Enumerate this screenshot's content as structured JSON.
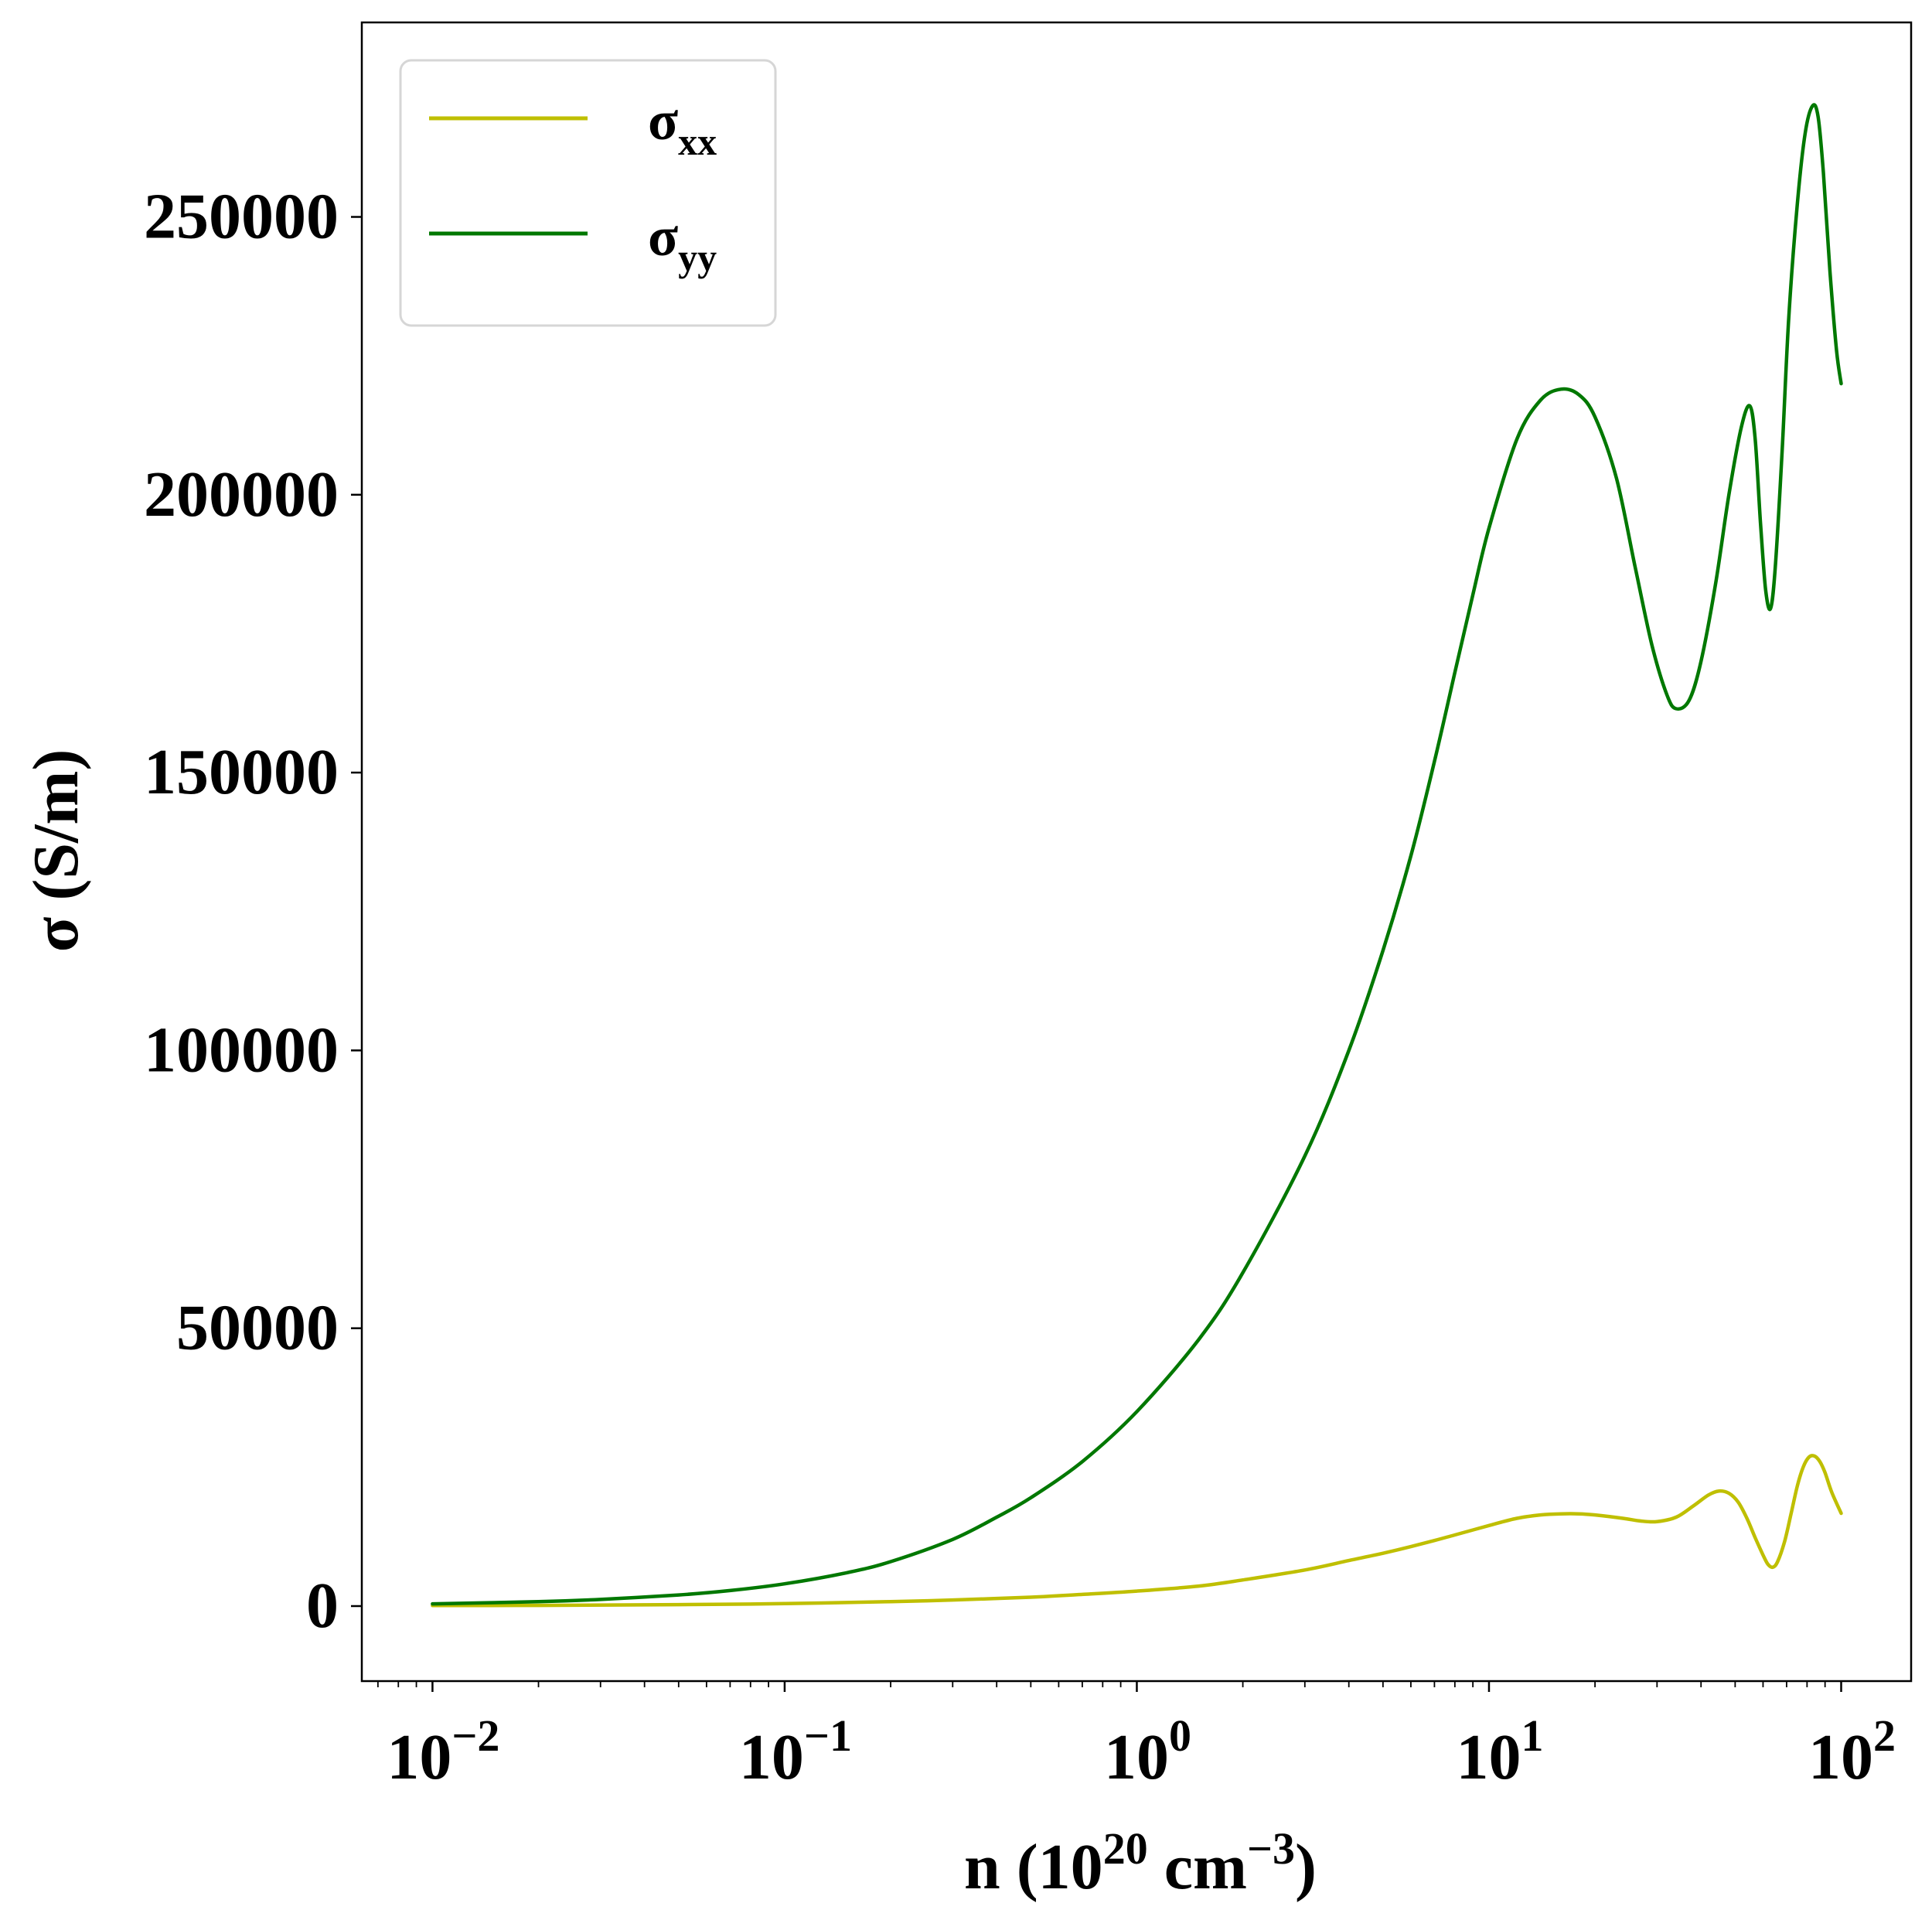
{
  "chart_data": {
    "type": "line",
    "xscale": "log",
    "xlim": [
      0.0063,
      158
    ],
    "ylim": [
      -13500,
      285000
    ],
    "xlabel": {
      "base": "n (10",
      "sup1": "20",
      "mid": " cm",
      "sup2": "−3",
      "end": ")"
    },
    "ylabel": "σ (S/m)",
    "x_ticks": [
      {
        "base": "10",
        "exp": "−2"
      },
      {
        "base": "10",
        "exp": "−1"
      },
      {
        "base": "10",
        "exp": "0"
      },
      {
        "base": "10",
        "exp": "1"
      },
      {
        "base": "10",
        "exp": "2"
      }
    ],
    "y_ticks": [
      "0",
      "50000",
      "100000",
      "150000",
      "200000",
      "250000"
    ],
    "legend": {
      "position": "top-left"
    },
    "series": [
      {
        "name": "σxx",
        "label_main": "σ",
        "label_sub": "xx",
        "color": "#bfbf00",
        "points": [
          [
            0.01,
            100
          ],
          [
            0.02,
            130
          ],
          [
            0.05,
            260
          ],
          [
            0.1,
            450
          ],
          [
            0.2,
            800
          ],
          [
            0.3,
            1100
          ],
          [
            0.5,
            1600
          ],
          [
            0.7,
            2100
          ],
          [
            1.0,
            2700
          ],
          [
            1.5,
            3600
          ],
          [
            2,
            4700
          ],
          [
            3,
            6500
          ],
          [
            4,
            8200
          ],
          [
            5,
            9500
          ],
          [
            6,
            10700
          ],
          [
            7,
            11800
          ],
          [
            8,
            12800
          ],
          [
            10,
            14500
          ],
          [
            12,
            15800
          ],
          [
            14,
            16400
          ],
          [
            16,
            16600
          ],
          [
            18,
            16600
          ],
          [
            20,
            16400
          ],
          [
            24,
            15800
          ],
          [
            27,
            15300
          ],
          [
            30,
            15200
          ],
          [
            34,
            16000
          ],
          [
            38,
            18000
          ],
          [
            42,
            20000
          ],
          [
            45,
            20700
          ],
          [
            48,
            20300
          ],
          [
            51,
            18700
          ],
          [
            54,
            15800
          ],
          [
            57,
            12300
          ],
          [
            60,
            9200
          ],
          [
            62,
            7500
          ],
          [
            64,
            7000
          ],
          [
            66,
            8000
          ],
          [
            69,
            11500
          ],
          [
            72,
            16500
          ],
          [
            75,
            21500
          ],
          [
            78,
            25000
          ],
          [
            81,
            26800
          ],
          [
            84,
            27000
          ],
          [
            87,
            26000
          ],
          [
            90,
            24000
          ],
          [
            94,
            20500
          ],
          [
            100,
            16700
          ]
        ]
      },
      {
        "name": "σyy",
        "label_main": "σ",
        "label_sub": "yy",
        "color": "#007800",
        "points": [
          [
            0.01,
            400
          ],
          [
            0.02,
            800
          ],
          [
            0.03,
            1200
          ],
          [
            0.05,
            2000
          ],
          [
            0.07,
            2800
          ],
          [
            0.1,
            4000
          ],
          [
            0.15,
            6000
          ],
          [
            0.2,
            8000
          ],
          [
            0.3,
            12000
          ],
          [
            0.4,
            16000
          ],
          [
            0.5,
            19500
          ],
          [
            0.7,
            26000
          ],
          [
            1.0,
            35000
          ],
          [
            1.5,
            48000
          ],
          [
            2,
            60000
          ],
          [
            3,
            81000
          ],
          [
            4,
            100000
          ],
          [
            5,
            118000
          ],
          [
            6,
            135000
          ],
          [
            7,
            152000
          ],
          [
            8,
            168000
          ],
          [
            9,
            182000
          ],
          [
            10,
            194000
          ],
          [
            12,
            210000
          ],
          [
            14,
            217000
          ],
          [
            16,
            219000
          ],
          [
            18,
            218000
          ],
          [
            20,
            214000
          ],
          [
            23,
            203000
          ],
          [
            26,
            187000
          ],
          [
            29,
            173000
          ],
          [
            32,
            164000
          ],
          [
            34,
            161500
          ],
          [
            37,
            163000
          ],
          [
            40,
            170000
          ],
          [
            44,
            184000
          ],
          [
            48,
            200000
          ],
          [
            52,
            212000
          ],
          [
            55,
            216000
          ],
          [
            57,
            210000
          ],
          [
            59,
            195000
          ],
          [
            61,
            183000
          ],
          [
            63,
            179500
          ],
          [
            65,
            187000
          ],
          [
            68,
            208000
          ],
          [
            71,
            232000
          ],
          [
            75,
            252000
          ],
          [
            79,
            265000
          ],
          [
            83,
            270000
          ],
          [
            86,
            268000
          ],
          [
            89,
            258000
          ],
          [
            93,
            240000
          ],
          [
            97,
            226000
          ],
          [
            100,
            220000
          ]
        ]
      }
    ]
  }
}
